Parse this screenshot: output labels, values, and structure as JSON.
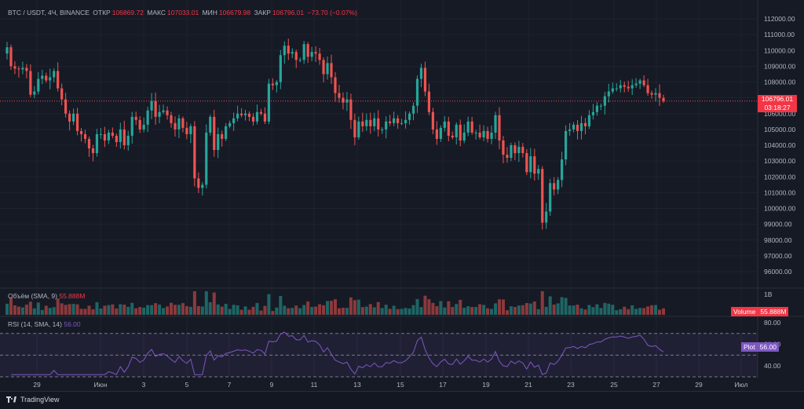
{
  "legend": {
    "symbol": "BTC / USDT, 4Ч, BINANCE",
    "open_label": "ОТКР",
    "open": "106869.72",
    "high_label": "МАКС",
    "high": "107033.01",
    "low_label": "МИН",
    "low": "106679.98",
    "close_label": "ЗАКР",
    "close": "106796.01",
    "change": "−73.70 (−0.07%)"
  },
  "price_axis": [
    "112000.00",
    "111000.00",
    "110000.00",
    "109000.00",
    "108000.00",
    "107000.00",
    "106000.00",
    "105000.00",
    "104000.00",
    "103000.00",
    "102000.00",
    "101000.00",
    "100000.00",
    "99000.00",
    "98000.00",
    "97000.00",
    "96000.00"
  ],
  "price_tag": {
    "price": "106796.01",
    "timer": "03:18:27"
  },
  "volume": {
    "title": "Объём (SMA, 9)",
    "value": "55.888M",
    "axis_label": "1B",
    "tag_name": "Volume",
    "tag_value": "55.888M"
  },
  "rsi": {
    "title": "RSI (14, SMA, 14)",
    "value": "56.00",
    "axis": [
      "80.00",
      "60.00",
      "40.00"
    ],
    "tag_name": "Plot",
    "tag_value": "56.00"
  },
  "time_axis": [
    "29",
    "Июн",
    "3",
    "5",
    "7",
    "9",
    "11",
    "13",
    "15",
    "17",
    "19",
    "21",
    "23",
    "25",
    "27",
    "29",
    "Июл"
  ],
  "footer": {
    "brand": "TradingView"
  },
  "colors": {
    "up": "#26a69a",
    "down": "#ef5350",
    "rsi": "#7e57c2",
    "background": "#161a25"
  },
  "chart_data": {
    "type": "candlestick",
    "price_range": [
      95500,
      112400
    ],
    "candles_close": [
      110200,
      109000,
      108850,
      108800,
      108900,
      108700,
      107200,
      107400,
      108200,
      108400,
      108100,
      108300,
      108700,
      107600,
      106900,
      106000,
      105500,
      106000,
      104900,
      104700,
      104400,
      103800,
      103500,
      104700,
      104700,
      104300,
      104800,
      104600,
      104200,
      105000,
      104000,
      104600,
      105800,
      105600,
      105000,
      105300,
      106200,
      106800,
      105800,
      106100,
      106200,
      105900,
      105400,
      105000,
      105700,
      105100,
      104700,
      105200,
      101900,
      101300,
      101500,
      104800,
      105800,
      103700,
      104700,
      104400,
      105200,
      105400,
      105700,
      106000,
      105900,
      106000,
      105800,
      105500,
      106100,
      106000,
      105500,
      107900,
      107800,
      108000,
      109700,
      110300,
      109800,
      109900,
      109400,
      109400,
      110400,
      109600,
      109900,
      109800,
      109400,
      108500,
      109200,
      108300,
      107300,
      107000,
      106700,
      106900,
      105600,
      104500,
      105500,
      105200,
      105600,
      105200,
      105700,
      105000,
      105000,
      105500,
      105400,
      105700,
      105400,
      105400,
      105600,
      106000,
      106500,
      108200,
      108900,
      107400,
      106100,
      105000,
      104400,
      105100,
      105500,
      104600,
      104500,
      105300,
      104300,
      104800,
      105500,
      104800,
      104800,
      104500,
      104900,
      104400,
      104800,
      105900,
      104300,
      103400,
      103200,
      104000,
      103500,
      103900,
      103500,
      102300,
      103300,
      102200,
      102500,
      99100,
      99800,
      101600,
      101200,
      101800,
      103100,
      104900,
      105000,
      105300,
      104900,
      105400,
      105200,
      105900,
      106100,
      106500,
      106500,
      107100,
      107400,
      107600,
      107600,
      107800,
      107700,
      107600,
      107800,
      107900,
      108100,
      107800,
      107300,
      107200,
      107300,
      107000,
      106796
    ],
    "rsi_range": [
      30,
      85
    ],
    "volume_unit": "M"
  }
}
